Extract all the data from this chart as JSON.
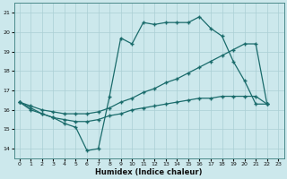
{
  "xlabel": "Humidex (Indice chaleur)",
  "bg_color": "#cce8ec",
  "line_color": "#1a6b6b",
  "grid_color": "#aacfd5",
  "xlim": [
    -0.5,
    23.5
  ],
  "ylim": [
    13.5,
    21.5
  ],
  "yticks": [
    14,
    15,
    16,
    17,
    18,
    19,
    20,
    21
  ],
  "xticks": [
    0,
    1,
    2,
    3,
    4,
    5,
    6,
    7,
    8,
    9,
    10,
    11,
    12,
    13,
    14,
    15,
    16,
    17,
    18,
    19,
    20,
    21,
    22,
    23
  ],
  "s1x": [
    0,
    1,
    2,
    3,
    4,
    5,
    6,
    7,
    8,
    9,
    10,
    11,
    12,
    13,
    14,
    15,
    16,
    17,
    18,
    19,
    20,
    21,
    22
  ],
  "s1y": [
    16.4,
    16.0,
    15.8,
    15.6,
    15.3,
    15.1,
    13.9,
    14.0,
    16.7,
    19.7,
    19.4,
    20.5,
    20.4,
    20.5,
    20.5,
    20.5,
    20.8,
    20.2,
    19.8,
    18.5,
    17.5,
    16.3,
    16.3
  ],
  "s2x": [
    0,
    1,
    2,
    3,
    4,
    5,
    6,
    7,
    8,
    9,
    10,
    11,
    12,
    13,
    14,
    15,
    16,
    17,
    18,
    19,
    20,
    21,
    22
  ],
  "s2y": [
    16.4,
    16.2,
    16.0,
    15.9,
    15.8,
    15.8,
    15.8,
    15.9,
    16.1,
    16.4,
    16.6,
    16.9,
    17.1,
    17.4,
    17.6,
    17.9,
    18.2,
    18.5,
    18.8,
    19.1,
    19.4,
    19.4,
    16.3
  ],
  "s3x": [
    0,
    1,
    2,
    3,
    4,
    5,
    6,
    7,
    8,
    9,
    10,
    11,
    12,
    13,
    14,
    15,
    16,
    17,
    18,
    19,
    20,
    21,
    22
  ],
  "s3y": [
    16.4,
    16.1,
    15.8,
    15.6,
    15.5,
    15.4,
    15.4,
    15.5,
    15.7,
    15.8,
    16.0,
    16.1,
    16.2,
    16.3,
    16.4,
    16.5,
    16.6,
    16.6,
    16.7,
    16.7,
    16.7,
    16.7,
    16.3
  ]
}
